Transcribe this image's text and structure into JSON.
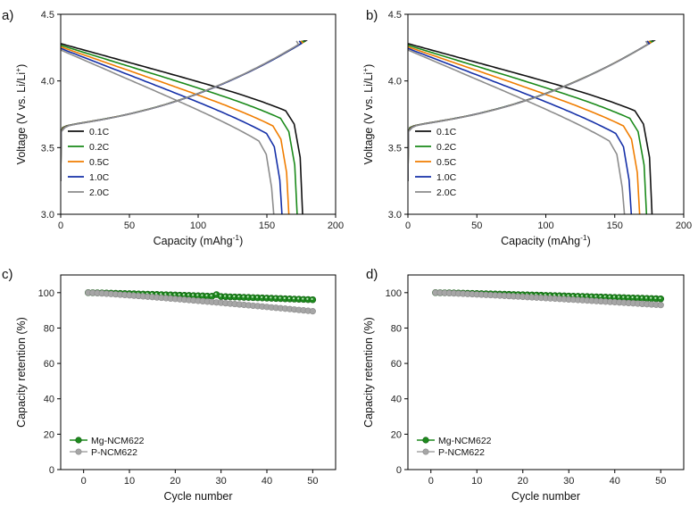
{
  "chart_data": [
    {
      "panel": "a)",
      "type": "line",
      "xlabel": "Capacity (mAhg",
      "xlabel_sup": "-1",
      "xlabel_end": ")",
      "ylabel": "Voltage (V vs. Li/Li",
      "ylabel_sup": "+",
      "ylabel_end": ")",
      "xlim": [
        0,
        200
      ],
      "ylim": [
        3.0,
        4.5
      ],
      "xticks": [
        0,
        50,
        100,
        150,
        200
      ],
      "xtick_labels": [
        "0",
        "50",
        "100",
        "150",
        "200"
      ],
      "yticks": [
        3.0,
        3.5,
        4.0,
        4.5
      ],
      "ytick_labels": [
        "3.0",
        "3.5",
        "4.0",
        "4.5"
      ],
      "legend": "bottom-left",
      "series": [
        {
          "name": "0.1C",
          "color": "#111111",
          "charge_end": 178,
          "discharge_end": 176
        },
        {
          "name": "0.2C",
          "color": "#1a8a1a",
          "charge_end": 177,
          "discharge_end": 172
        },
        {
          "name": "0.5C",
          "color": "#f07d00",
          "charge_end": 176,
          "discharge_end": 166
        },
        {
          "name": "1.0C",
          "color": "#1530a8",
          "charge_end": 175,
          "discharge_end": 161
        },
        {
          "name": "2.0C",
          "color": "#8c8c8c",
          "charge_end": 173,
          "discharge_end": 155
        }
      ]
    },
    {
      "panel": "b)",
      "type": "line",
      "xlabel": "Capacity (mAhg",
      "xlabel_sup": "-1",
      "xlabel_end": ")",
      "ylabel": "Voltage (V vs. Li/Li",
      "ylabel_sup": "+",
      "ylabel_end": ")",
      "xlim": [
        0,
        200
      ],
      "ylim": [
        3.0,
        4.5
      ],
      "xticks": [
        0,
        50,
        100,
        150,
        200
      ],
      "xtick_labels": [
        "0",
        "50",
        "100",
        "150",
        "200"
      ],
      "yticks": [
        3.0,
        3.5,
        4.0,
        4.5
      ],
      "ytick_labels": [
        "3.0",
        "3.5",
        "4.0",
        "4.5"
      ],
      "legend": "bottom-left",
      "series": [
        {
          "name": "0.1C",
          "color": "#111111",
          "charge_end": 178,
          "discharge_end": 177
        },
        {
          "name": "0.2C",
          "color": "#1a8a1a",
          "charge_end": 177,
          "discharge_end": 173
        },
        {
          "name": "0.5C",
          "color": "#f07d00",
          "charge_end": 176,
          "discharge_end": 168
        },
        {
          "name": "1.0C",
          "color": "#1530a8",
          "charge_end": 175,
          "discharge_end": 162
        },
        {
          "name": "2.0C",
          "color": "#8c8c8c",
          "charge_end": 174,
          "discharge_end": 157
        }
      ]
    },
    {
      "panel": "c)",
      "type": "scatter",
      "xlabel": "Cycle number",
      "ylabel": "Capacity retention (%)",
      "xlim": [
        -5,
        55
      ],
      "ylim": [
        0,
        110
      ],
      "xticks": [
        0,
        10,
        20,
        30,
        40,
        50
      ],
      "xtick_labels": [
        "0",
        "10",
        "20",
        "30",
        "40",
        "50"
      ],
      "yticks": [
        0,
        20,
        40,
        60,
        80,
        100
      ],
      "ytick_labels": [
        "0",
        "20",
        "40",
        "60",
        "80",
        "100"
      ],
      "legend": "bottom-left",
      "series": [
        {
          "name": "Mg-NCM622",
          "color": "#1e8a1e",
          "marker": "square-dot",
          "start": 100,
          "end": 96.0,
          "bump_at": 29,
          "bump": 1.0
        },
        {
          "name": "P-NCM622",
          "color": "#a6a6a6",
          "marker": "circle",
          "start": 100,
          "end": 89.5
        }
      ]
    },
    {
      "panel": "d)",
      "type": "scatter",
      "xlabel": "Cycle number",
      "ylabel": "Capacity retention (%)",
      "xlim": [
        -5,
        55
      ],
      "ylim": [
        0,
        110
      ],
      "xticks": [
        0,
        10,
        20,
        30,
        40,
        50
      ],
      "xtick_labels": [
        "0",
        "10",
        "20",
        "30",
        "40",
        "50"
      ],
      "yticks": [
        0,
        20,
        40,
        60,
        80,
        100
      ],
      "ytick_labels": [
        "0",
        "20",
        "40",
        "60",
        "80",
        "100"
      ],
      "legend": "bottom-left",
      "series": [
        {
          "name": "Mg-NCM622",
          "color": "#1e8a1e",
          "marker": "square-dot",
          "start": 100,
          "end": 96.5
        },
        {
          "name": "P-NCM622",
          "color": "#a6a6a6",
          "marker": "circle",
          "start": 100,
          "end": 93.0
        }
      ]
    }
  ]
}
